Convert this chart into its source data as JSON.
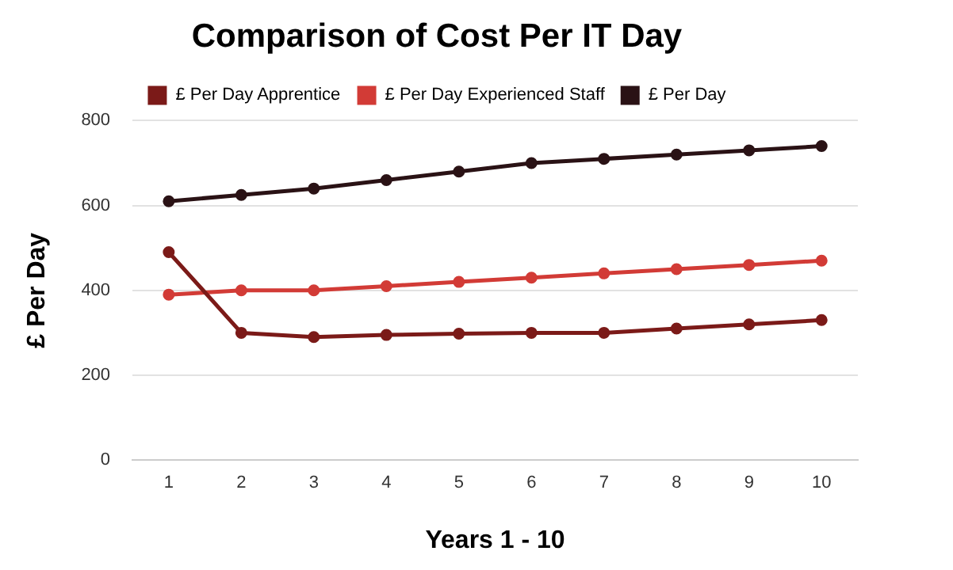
{
  "chart_data": {
    "type": "line",
    "title": "Comparison of Cost Per IT Day",
    "xlabel": "Years 1 - 10",
    "ylabel": "£ Per Day",
    "categories": [
      "1",
      "2",
      "3",
      "4",
      "5",
      "6",
      "7",
      "8",
      "9",
      "10"
    ],
    "series": [
      {
        "name": "£ Per Day Apprentice",
        "color": "#7b1a18",
        "values": [
          490,
          300,
          290,
          295,
          298,
          300,
          300,
          310,
          320,
          330
        ]
      },
      {
        "name": "£ Per Day Experienced Staff",
        "color": "#d23b36",
        "values": [
          390,
          400,
          400,
          410,
          420,
          430,
          440,
          450,
          460,
          470
        ]
      },
      {
        "name": "£ Per Day",
        "color": "#2a1215",
        "values": [
          610,
          625,
          640,
          660,
          680,
          700,
          710,
          720,
          730,
          740
        ]
      }
    ],
    "ylim": [
      0,
      800
    ],
    "yticks": [
      0,
      200,
      400,
      600,
      800
    ],
    "grid": "y",
    "legend": "top",
    "marker": "circle",
    "line_style": "solid"
  }
}
